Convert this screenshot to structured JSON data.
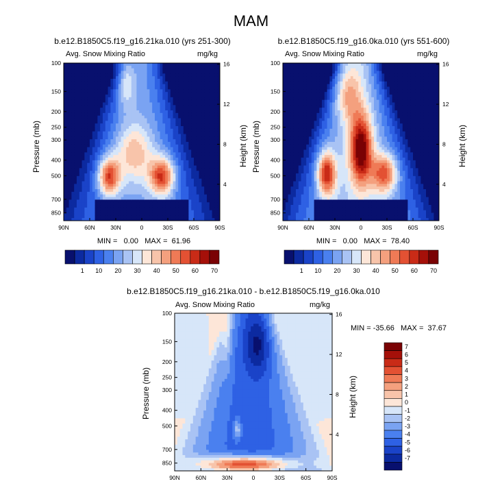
{
  "figure": {
    "title": "MAM"
  },
  "chart_data": [
    {
      "type": "heatmap",
      "title": "b.e12.B1850C5.f19_g16.21ka.010 (yrs 251-300)",
      "subtitle_left": "Avg. Snow Mixing Ratio",
      "subtitle_right": "mg/kg",
      "ylabel": "Pressure (mb)",
      "ylabel_right": "Height (km)",
      "x_ticks": [
        "90N",
        "60N",
        "30N",
        "0",
        "30S",
        "60S",
        "90S"
      ],
      "y_ticks": [
        "100",
        "150",
        "200",
        "250",
        "300",
        "400",
        "500",
        "700",
        "850"
      ],
      "y_ticks_values": [
        100,
        150,
        200,
        250,
        300,
        400,
        500,
        700,
        850
      ],
      "y_right_ticks": [
        "16",
        "12",
        "8",
        "4"
      ],
      "y_right_values": [
        16,
        12,
        8,
        4
      ],
      "ylim": [
        100,
        950
      ],
      "y_scale": "log",
      "min_max_text": "MIN =   0.00   MAX =  61.96",
      "colorbar_labels": [
        "1",
        "10",
        "20",
        "30",
        "40",
        "50",
        "60",
        "70"
      ],
      "colorbar_colors": [
        "#08106e",
        "#0c2aa0",
        "#1a43c8",
        "#2e61e4",
        "#4a80ef",
        "#7aa3f2",
        "#a9c3f4",
        "#d7e6f9",
        "#fde6d8",
        "#f8c4aa",
        "#f4a07e",
        "#ef7a56",
        "#e35133",
        "#c92b17",
        "#a51009",
        "#7a0204"
      ]
    },
    {
      "type": "heatmap",
      "title": "b.e12.B1850C5.f19_g16.0ka.010 (yrs 551-600)",
      "subtitle_left": "Avg. Snow Mixing Ratio",
      "subtitle_right": "mg/kg",
      "ylabel": "Pressure (mb)",
      "ylabel_right": "Height (km)",
      "x_ticks": [
        "90N",
        "60N",
        "30N",
        "0",
        "30S",
        "60S",
        "90S"
      ],
      "y_ticks": [
        "100",
        "150",
        "200",
        "250",
        "300",
        "400",
        "500",
        "700",
        "850"
      ],
      "y_ticks_values": [
        100,
        150,
        200,
        250,
        300,
        400,
        500,
        700,
        850
      ],
      "y_right_ticks": [
        "16",
        "12",
        "8",
        "4"
      ],
      "y_right_values": [
        16,
        12,
        8,
        4
      ],
      "ylim": [
        100,
        950
      ],
      "y_scale": "log",
      "min_max_text": "MIN =   0.00   MAX =  78.40",
      "colorbar_labels": [
        "1",
        "10",
        "20",
        "30",
        "40",
        "50",
        "60",
        "70"
      ],
      "colorbar_colors": [
        "#08106e",
        "#0c2aa0",
        "#1a43c8",
        "#2e61e4",
        "#4a80ef",
        "#7aa3f2",
        "#a9c3f4",
        "#d7e6f9",
        "#fde6d8",
        "#f8c4aa",
        "#f4a07e",
        "#ef7a56",
        "#e35133",
        "#c92b17",
        "#a51009",
        "#7a0204"
      ]
    },
    {
      "type": "heatmap",
      "title": "b.e12.B1850C5.f19_g16.21ka.010 - b.e12.B1850C5.f19_g16.0ka.010",
      "subtitle_left": "Avg. Snow Mixing Ratio",
      "subtitle_right": "mg/kg",
      "ylabel": "Pressure (mb)",
      "ylabel_right": "Height (km)",
      "x_ticks": [
        "90N",
        "60N",
        "30N",
        "0",
        "30S",
        "60S",
        "90S"
      ],
      "y_ticks": [
        "100",
        "150",
        "200",
        "250",
        "300",
        "400",
        "500",
        "700",
        "850"
      ],
      "y_ticks_values": [
        100,
        150,
        200,
        250,
        300,
        400,
        500,
        700,
        850
      ],
      "y_right_ticks": [
        "16",
        "12",
        "8",
        "4"
      ],
      "y_right_values": [
        16,
        12,
        8,
        4
      ],
      "ylim": [
        100,
        950
      ],
      "y_scale": "log",
      "min_max_text": "MIN = -35.66   MAX =  37.67",
      "colorbar_labels": [
        "7",
        "6",
        "5",
        "4",
        "3",
        "2",
        "1",
        "0",
        "-1",
        "-2",
        "-3",
        "-4",
        "-5",
        "-6",
        "-7"
      ],
      "colorbar_colors": [
        "#7a0204",
        "#a51009",
        "#c92b17",
        "#e35133",
        "#ef7a56",
        "#f4a07e",
        "#f8c4aa",
        "#fde6d8",
        "#d7e6f9",
        "#a9c3f4",
        "#7aa3f2",
        "#4a80ef",
        "#2e61e4",
        "#1a43c8",
        "#0c2aa0",
        "#08106e"
      ]
    }
  ]
}
